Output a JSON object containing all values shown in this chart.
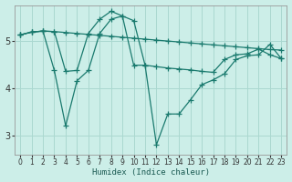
{
  "xlabel": "Humidex (Indice chaleur)",
  "bg_color": "#cceee8",
  "line_color": "#1a7a6e",
  "grid_color": "#aad8d0",
  "xlim": [
    -0.5,
    23.5
  ],
  "ylim": [
    2.6,
    5.75
  ],
  "yticks": [
    3,
    4,
    5
  ],
  "xticks": [
    0,
    1,
    2,
    3,
    4,
    5,
    6,
    7,
    8,
    9,
    10,
    11,
    12,
    13,
    14,
    15,
    16,
    17,
    18,
    19,
    20,
    21,
    22,
    23
  ],
  "line1_x": [
    0,
    1,
    2,
    3,
    4,
    5,
    6,
    7,
    8,
    9,
    10,
    11,
    12,
    13,
    14,
    15,
    16,
    17,
    18,
    19,
    20,
    21,
    22,
    23
  ],
  "line1_y": [
    5.12,
    5.18,
    5.2,
    5.19,
    5.17,
    5.15,
    5.13,
    5.11,
    5.09,
    5.07,
    5.05,
    5.03,
    5.01,
    4.99,
    4.97,
    4.95,
    4.93,
    4.91,
    4.89,
    4.87,
    4.85,
    4.83,
    4.81,
    4.8
  ],
  "line2_x": [
    0,
    1,
    2,
    3,
    4,
    5,
    6,
    7,
    8,
    9,
    10,
    11,
    12,
    13,
    14,
    15,
    16,
    17,
    18,
    19,
    20,
    21,
    22,
    23
  ],
  "line2_y": [
    5.12,
    5.18,
    5.2,
    5.19,
    4.35,
    4.37,
    5.15,
    5.45,
    5.62,
    5.52,
    5.42,
    4.48,
    2.8,
    3.45,
    3.45,
    3.75,
    4.07,
    4.17,
    4.3,
    4.6,
    4.68,
    4.7,
    4.92,
    4.62
  ],
  "line3_x": [
    0,
    1,
    2,
    3,
    4,
    5,
    6,
    7,
    8,
    9,
    10,
    11,
    12,
    13,
    14,
    15,
    16,
    17,
    18,
    19,
    20,
    21,
    22,
    23
  ],
  "line3_y": [
    5.12,
    5.18,
    5.2,
    4.37,
    3.2,
    4.15,
    4.37,
    5.15,
    5.45,
    5.52,
    4.48,
    4.48,
    4.45,
    4.42,
    4.4,
    4.38,
    4.35,
    4.33,
    4.6,
    4.7,
    4.72,
    4.82,
    4.7,
    4.62
  ],
  "marker": "+",
  "markersize": 4,
  "linewidth": 0.9
}
